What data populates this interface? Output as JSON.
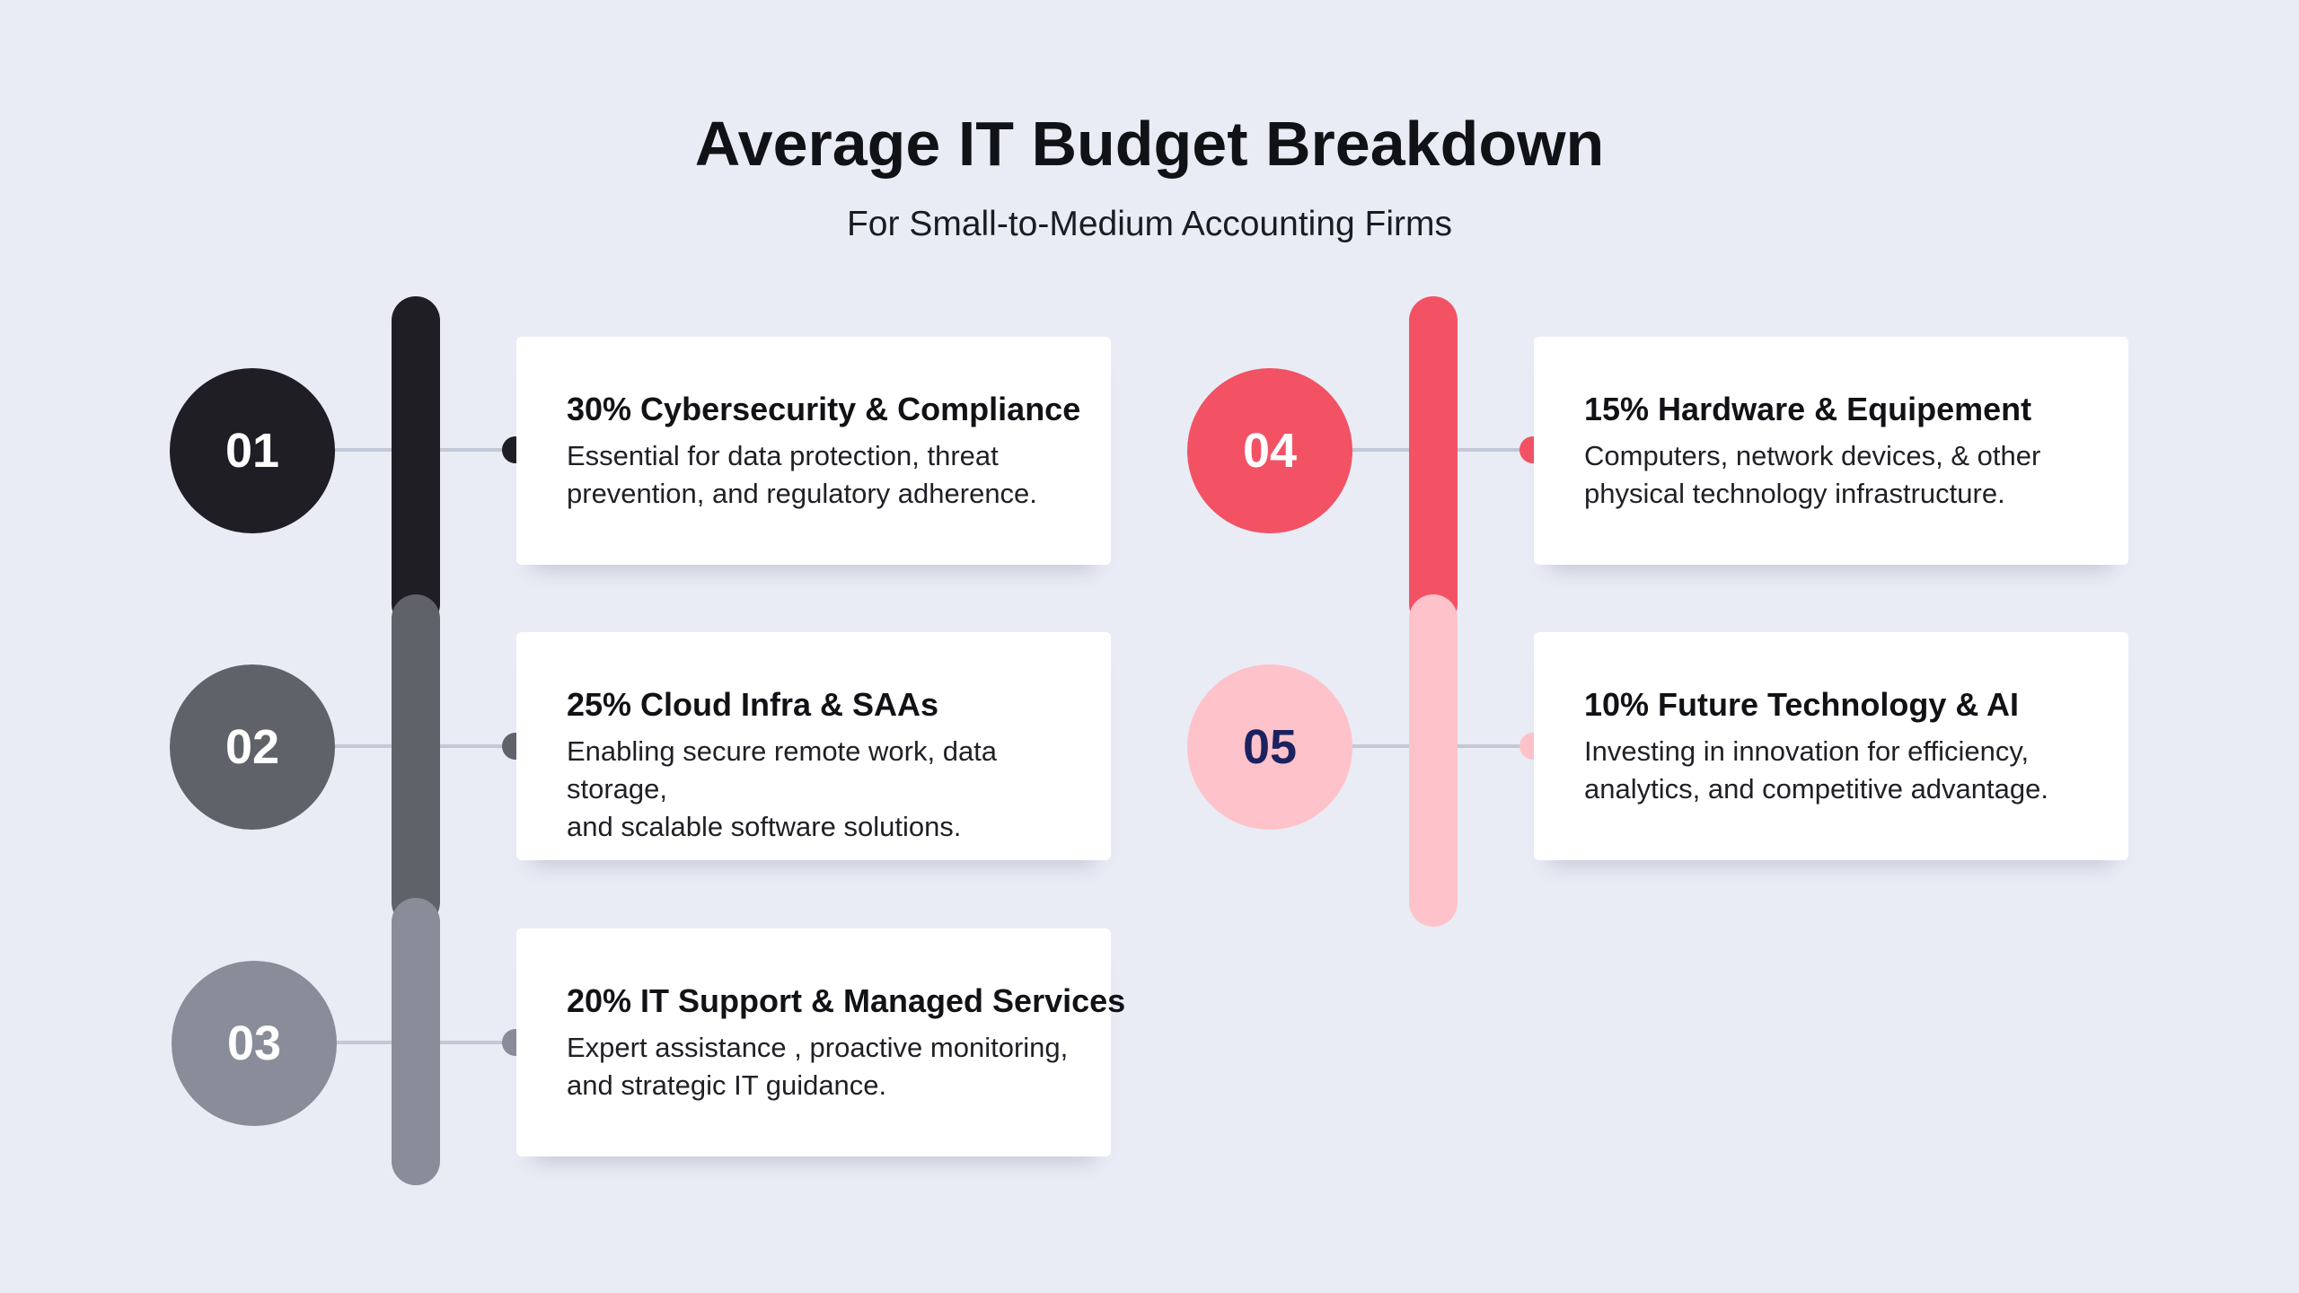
{
  "title": "Average IT Budget Breakdown",
  "subtitle": "For Small-to-Medium Accounting Firms",
  "items": [
    {
      "number": "01",
      "title": "30% Cybersecurity & Compliance",
      "desc_line1": "Essential for data protection, threat",
      "desc_line2": "prevention, and regulatory adherence.",
      "percent": 30,
      "color": "#1e1e24",
      "number_color": "#ffffff"
    },
    {
      "number": "02",
      "title": "25% Cloud Infra & SAAs",
      "desc_line1": "Enabling secure remote work, data storage,",
      "desc_line2": "and scalable software solutions.",
      "percent": 25,
      "color": "#606269",
      "number_color": "#ffffff"
    },
    {
      "number": "03",
      "title": "20% IT Support & Managed Services",
      "desc_line1": "Expert assistance , proactive monitoring,",
      "desc_line2": "and strategic IT guidance.",
      "percent": 20,
      "color": "#898d99",
      "number_color": "#ffffff"
    },
    {
      "number": "04",
      "title": "15% Hardware & Equipement",
      "desc_line1": "Computers, network devices, & other",
      "desc_line2": "physical technology infrastructure.",
      "percent": 15,
      "color": "#f25264",
      "number_color": "#ffffff"
    },
    {
      "number": "05",
      "title": "10% Future Technology & AI",
      "desc_line1": "Investing in innovation for efficiency,",
      "desc_line2": "analytics, and competitive advantage.",
      "percent": 10,
      "color": "#fec2ca",
      "number_color": "#1c2260"
    }
  ]
}
